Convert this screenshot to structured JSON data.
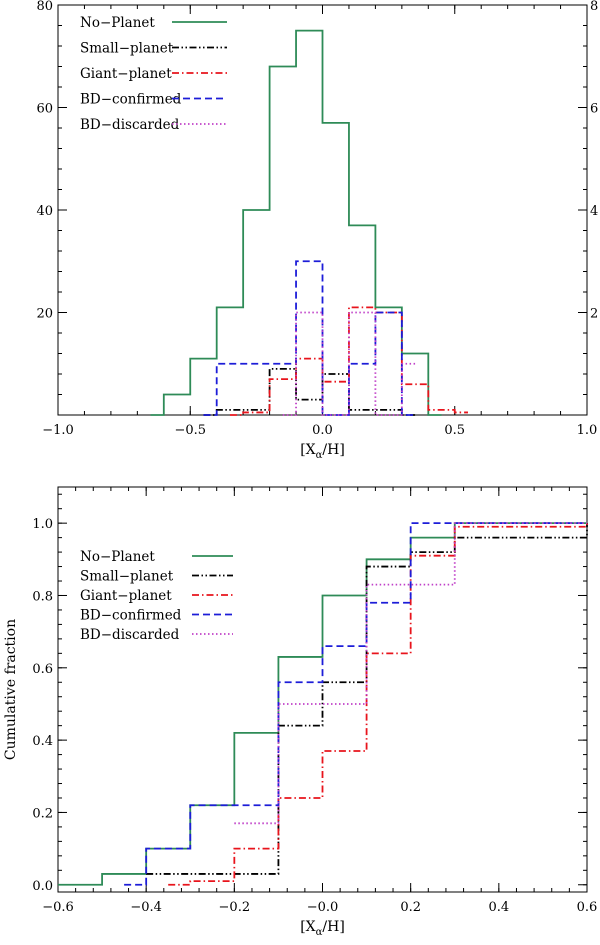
{
  "chart_data": [
    {
      "type": "histogram",
      "xlabel": "[X_α/H]",
      "xlabel_main": "[X",
      "xlabel_sub": "α",
      "xlabel_tail": "/H]",
      "ylabel": "",
      "xlim": [
        -1.0,
        1.0
      ],
      "ylim": [
        0,
        80
      ],
      "ylim_right": [
        0,
        8
      ],
      "x_ticks": [
        -1.0,
        -0.5,
        0.0,
        0.5,
        1.0
      ],
      "x_tick_labels": [
        "−1.0",
        "−0.5",
        "0.0",
        "0.5",
        "1.0"
      ],
      "y_ticks": [
        20,
        40,
        60,
        80
      ],
      "y_tick_labels": [
        "20",
        "40",
        "60",
        "80"
      ],
      "y_right_ticks": [
        2,
        4,
        6,
        8
      ],
      "y_right_tick_labels": [
        "2",
        "4",
        "6",
        "8"
      ],
      "legend_position": "top-left",
      "series": [
        {
          "name": "No−Planet",
          "axis": "left",
          "color": "#2e8b57",
          "dash": "solid",
          "edges": [
            -0.65,
            -0.6,
            -0.5,
            -0.4,
            -0.3,
            -0.2,
            -0.1,
            0.0,
            0.1,
            0.2,
            0.3,
            0.4,
            0.45
          ],
          "values": [
            0,
            4,
            11,
            21,
            40,
            68,
            75,
            57,
            37,
            21,
            12,
            0
          ]
        },
        {
          "name": "Small−planet",
          "axis": "right",
          "color": "#000000",
          "dash": "dashdotdot",
          "edges": [
            -0.45,
            -0.4,
            -0.3,
            -0.2,
            -0.1,
            0.0,
            0.1,
            0.2,
            0.3,
            0.35
          ],
          "values": [
            0,
            0.1,
            0.1,
            0.9,
            0.3,
            0.8,
            0.1,
            0.1,
            0
          ]
        },
        {
          "name": "Giant−planet",
          "axis": "right",
          "color": "#e8141c",
          "dash": "dashdot",
          "edges": [
            -0.35,
            -0.3,
            -0.2,
            -0.1,
            0.0,
            0.1,
            0.2,
            0.3,
            0.4,
            0.5,
            0.55
          ],
          "values": [
            0,
            0.05,
            0.7,
            1.1,
            0.65,
            2.1,
            2.0,
            0.6,
            0.1,
            0.05
          ]
        },
        {
          "name": "BD−confirmed",
          "axis": "right",
          "color": "#1d1dd8",
          "dash": "dashed",
          "edges": [
            -0.45,
            -0.4,
            -0.3,
            -0.2,
            -0.1,
            0.0,
            0.1,
            0.2,
            0.3,
            0.35
          ],
          "values": [
            0,
            1.0,
            1.0,
            1.0,
            3.0,
            0,
            1.0,
            2.0,
            0
          ]
        },
        {
          "name": "BD−discarded",
          "axis": "right",
          "color": "#c040c8",
          "dash": "dotted",
          "edges": [
            -0.15,
            -0.1,
            0.0,
            0.1,
            0.2,
            0.3,
            0.35
          ],
          "values": [
            0,
            2.0,
            0,
            2.0,
            0,
            1.0
          ]
        }
      ]
    },
    {
      "type": "cumulative-step",
      "xlabel": "[X_α/H]",
      "xlabel_main": "[X",
      "xlabel_sub": "α",
      "xlabel_tail": "/H]",
      "ylabel": "Cumulative fraction",
      "xlim": [
        -0.6,
        0.6
      ],
      "ylim": [
        -0.02,
        1.1
      ],
      "x_ticks": [
        -0.6,
        -0.4,
        -0.2,
        0.0,
        0.2,
        0.4,
        0.6
      ],
      "x_tick_labels": [
        "−0.6",
        "−0.4",
        "−0.2",
        "−0.0",
        "0.2",
        "0.4",
        "0.6"
      ],
      "y_ticks": [
        0.0,
        0.2,
        0.4,
        0.6,
        0.8,
        1.0
      ],
      "y_tick_labels": [
        "0.0",
        "0.2",
        "0.4",
        "0.6",
        "0.8",
        "1.0"
      ],
      "legend_position": "center-left",
      "series": [
        {
          "name": "No−Planet",
          "color": "#2e8b57",
          "dash": "solid",
          "edges": [
            -0.6,
            -0.5,
            -0.4,
            -0.3,
            -0.2,
            -0.1,
            0.0,
            0.1,
            0.2,
            0.3,
            0.6
          ],
          "values": [
            0.0,
            0.03,
            0.1,
            0.22,
            0.42,
            0.63,
            0.8,
            0.9,
            0.96,
            1.0
          ]
        },
        {
          "name": "Small−planet",
          "color": "#000000",
          "dash": "dashdotdot",
          "edges": [
            -0.4,
            -0.2,
            -0.1,
            0.0,
            0.1,
            0.2,
            0.3,
            0.6
          ],
          "values": [
            0.03,
            0.03,
            0.44,
            0.56,
            0.88,
            0.92,
            0.96,
            1.0
          ]
        },
        {
          "name": "Giant−planet",
          "color": "#e8141c",
          "dash": "dashdot",
          "edges": [
            -0.35,
            -0.3,
            -0.2,
            -0.1,
            0.0,
            0.1,
            0.2,
            0.3,
            0.6
          ],
          "values": [
            0.0,
            0.01,
            0.1,
            0.24,
            0.37,
            0.64,
            0.91,
            0.99,
            1.0
          ]
        },
        {
          "name": "BD−confirmed",
          "color": "#1d1dd8",
          "dash": "dashed",
          "edges": [
            -0.45,
            -0.4,
            -0.3,
            -0.2,
            -0.1,
            0.0,
            0.1,
            0.2,
            0.6
          ],
          "values": [
            0.0,
            0.1,
            0.22,
            0.22,
            0.56,
            0.66,
            0.78,
            1.0
          ]
        },
        {
          "name": "BD−discarded",
          "color": "#c040c8",
          "dash": "dotted",
          "edges": [
            -0.2,
            -0.1,
            0.0,
            0.1,
            0.2,
            0.3,
            0.6
          ],
          "values": [
            0.17,
            0.5,
            0.5,
            0.83,
            0.83,
            1.0
          ]
        }
      ]
    }
  ]
}
